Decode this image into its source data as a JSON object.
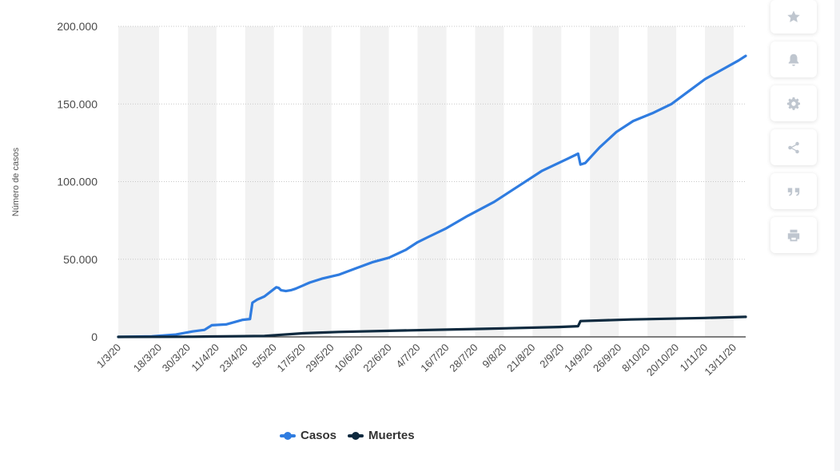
{
  "colors": {
    "casos": "#2f7ce0",
    "muertes": "#0f2a3f",
    "band": "#f2f2f2",
    "grid": "#c8c8c8"
  },
  "toolbar": {
    "icons": [
      "star-icon",
      "bell-icon",
      "gear-icon",
      "share-icon",
      "quote-icon",
      "print-icon"
    ]
  },
  "chart_data": {
    "type": "line",
    "ylabel": "Número de casos",
    "ylim": [
      0,
      200000
    ],
    "yticks": [
      0,
      50000,
      100000,
      150000,
      200000
    ],
    "ytick_labels": [
      "0",
      "50.000",
      "100.000",
      "150.000",
      "200.000"
    ],
    "xtick_labels": [
      "1/3/20",
      "18/3/20",
      "30/3/20",
      "11/4/20",
      "23/4/20",
      "5/5/20",
      "17/5/20",
      "29/5/20",
      "10/6/20",
      "22/6/20",
      "4/7/20",
      "16/7/20",
      "28/7/20",
      "9/8/20",
      "21/8/20",
      "2/9/20",
      "14/9/20",
      "26/9/20",
      "8/10/20",
      "20/10/20",
      "1/11/20",
      "13/11/20"
    ],
    "x_range": [
      "1/3/20",
      "18/11/20"
    ],
    "grid": true,
    "legend_position": "bottom",
    "series": [
      {
        "name": "Casos",
        "x": [
          "1/3/20",
          "15/3/20",
          "25/3/20",
          "1/4/20",
          "6/4/20",
          "8/4/20",
          "9/4/20",
          "15/4/20",
          "22/4/20",
          "25/4/20",
          "26/4/20",
          "28/4/20",
          "1/5/20",
          "6/5/20",
          "7/5/20",
          "8/5/20",
          "10/5/20",
          "12/5/20",
          "14/5/20",
          "17/5/20",
          "20/5/20",
          "25/5/20",
          "1/6/20",
          "8/6/20",
          "15/6/20",
          "22/6/20",
          "29/6/20",
          "4/7/20",
          "8/7/20",
          "16/7/20",
          "25/7/20",
          "5/8/20",
          "15/8/20",
          "25/8/20",
          "5/9/20",
          "9/9/20",
          "10/9/20",
          "12/9/20",
          "15/9/20",
          "18/9/20",
          "25/9/20",
          "2/10/20",
          "10/10/20",
          "18/10/20",
          "25/10/20",
          "1/11/20",
          "8/11/20",
          "15/11/20",
          "18/11/20"
        ],
        "values": [
          0,
          300,
          1500,
          3500,
          4500,
          6500,
          7500,
          8000,
          11000,
          11500,
          22000,
          24000,
          26000,
          32000,
          31500,
          30000,
          29500,
          30000,
          31000,
          33000,
          35000,
          37500,
          40000,
          44000,
          48000,
          51000,
          56000,
          61000,
          64000,
          70000,
          78000,
          87000,
          97000,
          107000,
          115000,
          118000,
          111000,
          112000,
          117000,
          122000,
          132000,
          139000,
          144000,
          150000,
          158000,
          166000,
          172000,
          178000,
          181000
        ]
      },
      {
        "name": "Muertes",
        "x": [
          "1/3/20",
          "1/4/20",
          "1/5/20",
          "17/5/20",
          "1/6/20",
          "1/7/20",
          "1/8/20",
          "1/9/20",
          "9/9/20",
          "10/9/20",
          "1/10/20",
          "1/11/20",
          "18/11/20"
        ],
        "values": [
          0,
          100,
          600,
          2300,
          3200,
          4200,
          5200,
          6400,
          6900,
          10200,
          11200,
          12200,
          12900
        ]
      }
    ]
  }
}
